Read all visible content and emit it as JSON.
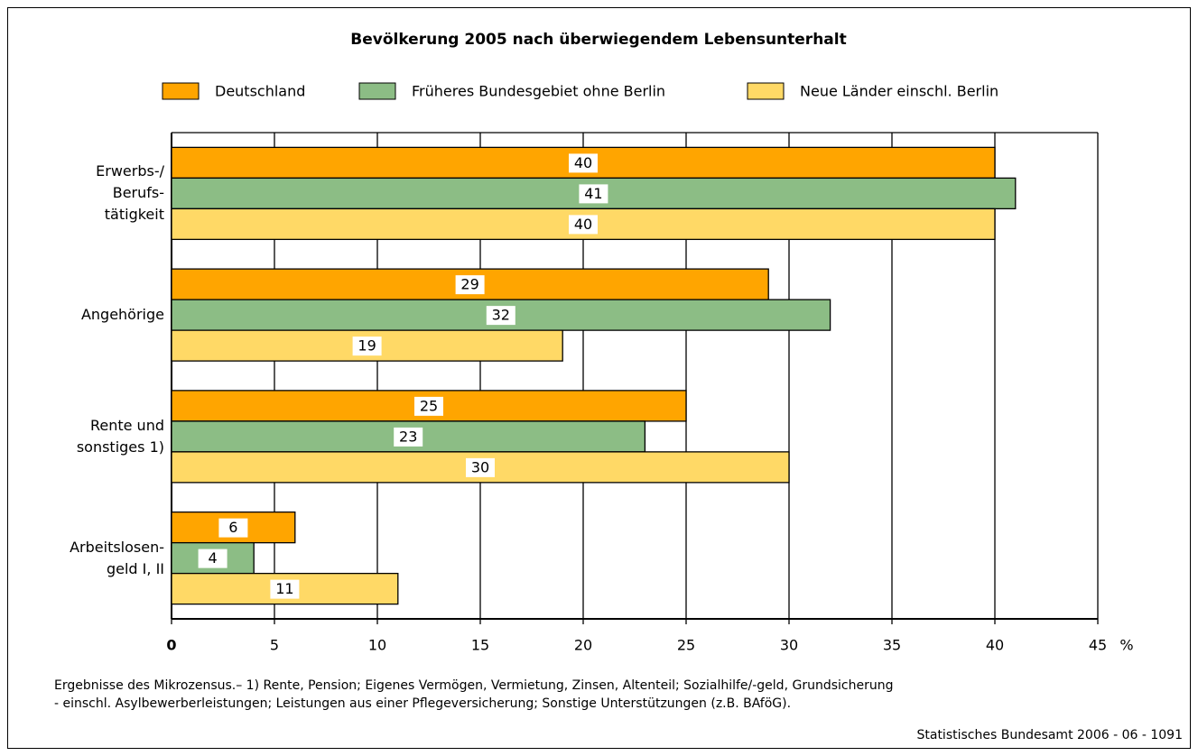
{
  "chart_data": {
    "type": "bar",
    "orientation": "horizontal",
    "title": "Bevölkerung 2005 nach überwiegendem Lebensunterhalt",
    "categories": [
      "Erwerbs-/\nBerufs-\ntätigkeit",
      "Angehörige",
      "Rente und\nsonstiges 1)",
      "Arbeitslosen-\ngeld I, II"
    ],
    "series": [
      {
        "name": "Deutschland",
        "color": "#ffa500",
        "values": [
          40,
          29,
          25,
          6
        ]
      },
      {
        "name": "Früheres Bundesgebiet ohne Berlin",
        "color": "#8cbd85",
        "values": [
          41,
          32,
          23,
          4
        ]
      },
      {
        "name": "Neue Länder einschl. Berlin",
        "color": "#ffd966",
        "values": [
          40,
          19,
          30,
          11
        ]
      }
    ],
    "xlim": [
      0,
      45
    ],
    "xticks": [
      0,
      5,
      10,
      15,
      20,
      25,
      30,
      35,
      40,
      45
    ],
    "x_unit": "%",
    "grid": true,
    "legend": "top",
    "note": [
      "Ergebnisse des Mikrozensus.– 1) Rente, Pension; Eigenes Vermögen, Vermietung, Zinsen, Altenteil; Sozialhilfe/-geld, Grundsicherung",
      "- einschl. Asylbewerberleistungen; Leistungen aus einer Pflegeversicherung; Sonstige Unterstützungen (z.B. BAföG)."
    ],
    "source": "Statistisches Bundesamt 2006 - 06 - 1091"
  }
}
